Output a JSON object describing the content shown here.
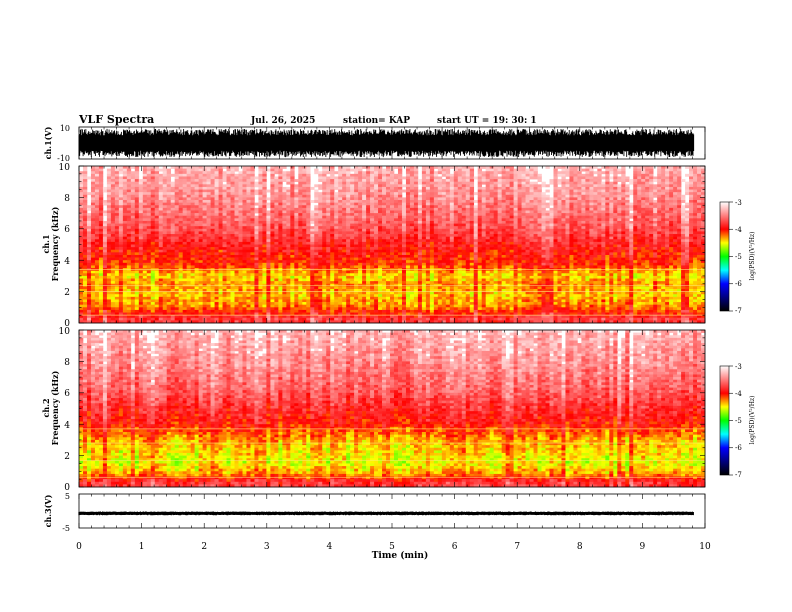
{
  "header": {
    "title": "VLF Spectra",
    "date": "Jul. 26, 2025",
    "station": "station= KAP",
    "start": "start UT =  19: 30: 1"
  },
  "colorbar": {
    "label": "log(PSD)(V²/Hz)",
    "ticks": [
      "-3",
      "-4",
      "-5",
      "-6",
      "-7"
    ],
    "stops": [
      {
        "v": -3.0,
        "color": "#ffffff"
      },
      {
        "v": -4.0,
        "color": "#ff0000"
      },
      {
        "v": -4.5,
        "color": "#ffff00"
      },
      {
        "v": -5.0,
        "color": "#00ff00"
      },
      {
        "v": -5.5,
        "color": "#00ffff"
      },
      {
        "v": -6.0,
        "color": "#0000ff"
      },
      {
        "v": -7.0,
        "color": "#000000"
      }
    ]
  },
  "chart_data": [
    {
      "type": "line",
      "name": "ch1-waveform",
      "ylabel": "ch.1(V)",
      "ylim": [
        -10,
        10
      ],
      "ytick_labels": [
        "10",
        "-10"
      ],
      "xlim": [
        0,
        10
      ],
      "description_series": {
        "name": "ch.1 voltage",
        "envelope": [
          -8,
          8
        ]
      }
    },
    {
      "type": "heatmap",
      "name": "ch1-spectrogram",
      "ylabel_top": "ch.1",
      "ylabel": "Frequency (kHz)",
      "ylim": [
        0,
        10
      ],
      "ytick_labels": [
        "0",
        "2",
        "4",
        "6",
        "8",
        "10"
      ],
      "xlim": [
        0,
        10
      ],
      "zlim": [
        -7,
        -3
      ],
      "band_profile": [
        {
          "f": 0.3,
          "z": -3.8
        },
        {
          "f": 1.0,
          "z": -4.25
        },
        {
          "f": 1.8,
          "z": -4.4
        },
        {
          "f": 2.5,
          "z": -4.3
        },
        {
          "f": 3.0,
          "z": -4.45
        },
        {
          "f": 3.7,
          "z": -4.1
        },
        {
          "f": 4.5,
          "z": -4.0
        },
        {
          "f": 6.0,
          "z": -3.7
        },
        {
          "f": 8.0,
          "z": -3.45
        },
        {
          "f": 10.0,
          "z": -3.3
        }
      ],
      "harmonic_lines_khz": [
        0.5,
        2.0,
        2.4,
        3.4
      ]
    },
    {
      "type": "heatmap",
      "name": "ch2-spectrogram",
      "ylabel_top": "ch.2",
      "ylabel": "Frequency (kHz)",
      "ylim": [
        0,
        10
      ],
      "ytick_labels": [
        "0",
        "2",
        "4",
        "6",
        "8",
        "10"
      ],
      "xlim": [
        0,
        10
      ],
      "zlim": [
        -7,
        -3
      ],
      "band_profile": [
        {
          "f": 0.3,
          "z": -3.8
        },
        {
          "f": 0.8,
          "z": -4.3
        },
        {
          "f": 1.5,
          "z": -4.55
        },
        {
          "f": 2.3,
          "z": -4.45
        },
        {
          "f": 3.0,
          "z": -4.35
        },
        {
          "f": 4.0,
          "z": -4.0
        },
        {
          "f": 5.0,
          "z": -3.85
        },
        {
          "f": 6.5,
          "z": -3.6
        },
        {
          "f": 8.0,
          "z": -3.45
        },
        {
          "f": 10.0,
          "z": -3.3
        }
      ],
      "harmonic_lines_khz": [
        0.6,
        1.7,
        2.8,
        3.7
      ]
    },
    {
      "type": "line",
      "name": "ch3-waveform",
      "ylabel": "ch.3(V)",
      "ylim": [
        -5,
        5
      ],
      "ytick_labels": [
        "5",
        "-5"
      ],
      "xlim": [
        0,
        10
      ],
      "xlabel": "Time (min)",
      "xtick_labels": [
        "0",
        "1",
        "2",
        "3",
        "4",
        "5",
        "6",
        "7",
        "8",
        "9",
        "10"
      ],
      "description_series": {
        "name": "ch.3 voltage",
        "level": -0.7,
        "envelope": [
          -1.1,
          -0.3
        ]
      },
      "data_end_min": 9.83
    }
  ]
}
